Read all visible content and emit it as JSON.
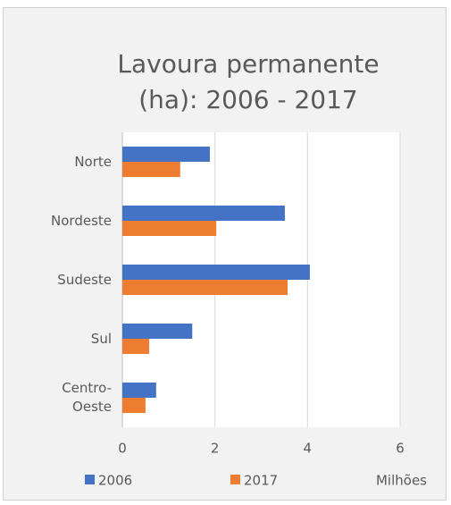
{
  "chart_data": {
    "type": "barh",
    "title": "Lavoura permanente (ha): 2006 - 2017",
    "categories": [
      "Norte",
      "Nordeste",
      "Sudeste",
      "Sul",
      "Centro-Oeste"
    ],
    "series": [
      {
        "name": "2006",
        "color": "#4472c4",
        "values": [
          1.89,
          3.51,
          4.05,
          1.51,
          0.73
        ]
      },
      {
        "name": "2017",
        "color": "#ed7d31",
        "values": [
          1.25,
          2.03,
          3.57,
          0.58,
          0.5
        ]
      }
    ],
    "xlim": [
      0,
      6
    ],
    "xticks": [
      0,
      2,
      4,
      6
    ],
    "x_unit_label": "Milhões",
    "grid": true,
    "legend": "bottom"
  }
}
